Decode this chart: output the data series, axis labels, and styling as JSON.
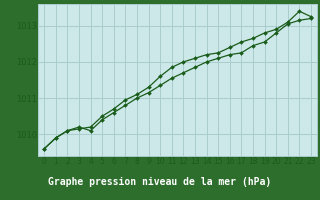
{
  "title": "Graphe pression niveau de la mer (hPa)",
  "background_color": "#cce8e8",
  "plot_bg_color": "#cce8e8",
  "grid_color": "#aacccc",
  "line_color": "#1a5c1a",
  "marker_color": "#1a5c1a",
  "label_bg_color": "#2d6e2d",
  "label_text_color": "#ffffff",
  "xlim": [
    -0.5,
    23.5
  ],
  "ylim": [
    1009.4,
    1013.6
  ],
  "yticks": [
    1010,
    1011,
    1012,
    1013
  ],
  "xticks": [
    0,
    1,
    2,
    3,
    4,
    5,
    6,
    7,
    8,
    9,
    10,
    11,
    12,
    13,
    14,
    15,
    16,
    17,
    18,
    19,
    20,
    21,
    22,
    23
  ],
  "series1": [
    1009.6,
    1009.9,
    1010.1,
    1010.2,
    1010.1,
    1010.4,
    1010.6,
    1010.8,
    1011.0,
    1011.15,
    1011.35,
    1011.55,
    1011.7,
    1011.85,
    1012.0,
    1012.1,
    1012.2,
    1012.25,
    1012.45,
    1012.55,
    1012.8,
    1013.05,
    1013.15,
    1013.2
  ],
  "series2": [
    1009.6,
    1009.9,
    1010.1,
    1010.15,
    1010.2,
    1010.5,
    1010.7,
    1010.95,
    1011.1,
    1011.3,
    1011.6,
    1011.85,
    1012.0,
    1012.1,
    1012.2,
    1012.25,
    1012.4,
    1012.55,
    1012.65,
    1012.8,
    1012.9,
    1013.1,
    1013.4,
    1013.25
  ],
  "ylabel_fontsize": 6,
  "xlabel_fontsize": 7,
  "tick_fontsize": 5.5
}
